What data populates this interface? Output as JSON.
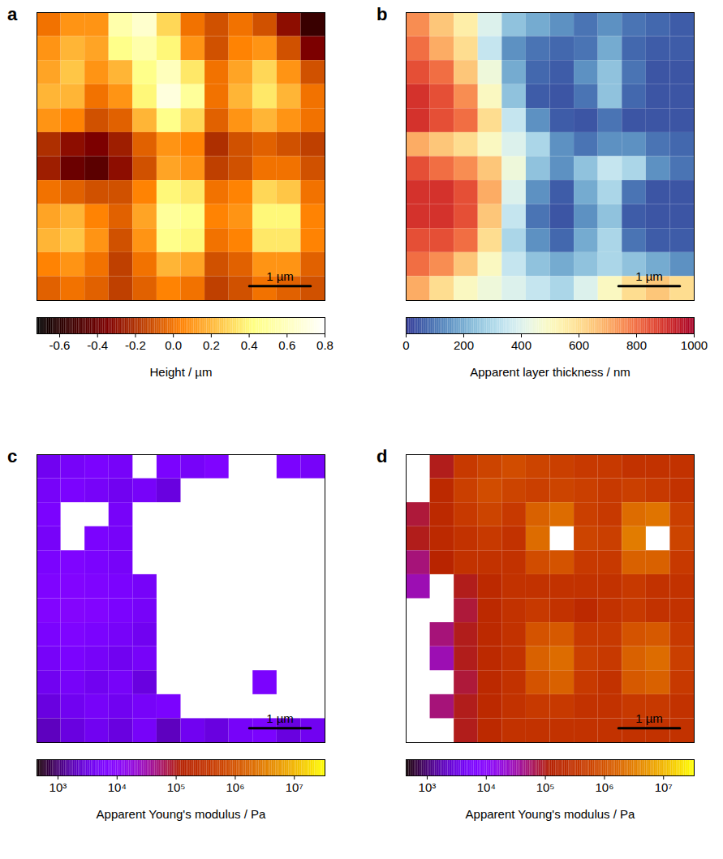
{
  "chart_data": [
    {
      "type": "heatmap",
      "panel": "a",
      "xlim": [
        0,
        4.7
      ],
      "ylim": [
        0,
        4.7
      ],
      "tick_labels": false,
      "color": "afmhot",
      "scale_bar": {
        "length": 1,
        "label": "1 µm"
      },
      "colorbar": {
        "label": "Height / µm",
        "range": [
          -0.72,
          0.8
        ],
        "ticks": [
          -0.6,
          -0.4,
          -0.2,
          {
            "value": 0,
            "label": "0.0"
          },
          0.2,
          0.4,
          0.6,
          0.8
        ]
      },
      "cells": [
        [
          0.0,
          0.1,
          0.1,
          0.55,
          0.65,
          0.3,
          0.0,
          -0.1,
          0.0,
          -0.1,
          -0.3,
          -0.55
        ],
        [
          0.1,
          0.2,
          0.15,
          0.45,
          0.55,
          0.4,
          0.1,
          -0.1,
          0.05,
          0.1,
          -0.1,
          -0.35
        ],
        [
          0.15,
          0.25,
          0.1,
          0.2,
          0.45,
          0.6,
          0.35,
          0.0,
          0.15,
          0.3,
          0.1,
          -0.1
        ],
        [
          0.2,
          0.2,
          0.0,
          0.1,
          0.4,
          0.7,
          0.5,
          0.0,
          0.2,
          0.35,
          0.2,
          0.0
        ],
        [
          0.1,
          0.05,
          -0.1,
          -0.05,
          0.2,
          0.45,
          0.3,
          -0.05,
          0.1,
          0.2,
          0.1,
          0.0
        ],
        [
          -0.2,
          -0.3,
          -0.35,
          -0.25,
          -0.05,
          0.1,
          0.05,
          -0.2,
          -0.1,
          -0.05,
          -0.1,
          -0.15
        ],
        [
          -0.25,
          -0.4,
          -0.45,
          -0.3,
          -0.1,
          0.15,
          0.1,
          -0.15,
          -0.1,
          0.0,
          0.0,
          -0.1
        ],
        [
          0.0,
          -0.05,
          -0.1,
          -0.1,
          0.05,
          0.4,
          0.35,
          0.0,
          0.05,
          0.3,
          0.25,
          0.0
        ],
        [
          0.15,
          0.2,
          0.05,
          -0.05,
          0.15,
          0.5,
          0.45,
          0.05,
          0.1,
          0.4,
          0.4,
          0.05
        ],
        [
          0.2,
          0.25,
          0.1,
          -0.1,
          0.1,
          0.45,
          0.4,
          0.0,
          0.05,
          0.35,
          0.35,
          0.05
        ],
        [
          0.05,
          0.1,
          0.0,
          -0.15,
          0.0,
          0.2,
          0.15,
          -0.1,
          -0.05,
          0.1,
          0.1,
          -0.05
        ],
        [
          -0.05,
          0.0,
          -0.05,
          -0.15,
          -0.05,
          0.05,
          0.0,
          -0.15,
          -0.1,
          0.0,
          -0.05,
          -0.1
        ]
      ]
    },
    {
      "type": "heatmap",
      "panel": "b",
      "xlim": [
        0,
        4.7
      ],
      "ylim": [
        0,
        4.7
      ],
      "tick_labels": false,
      "color": "RdYlBu",
      "scale_bar": {
        "length": 1,
        "label": "1 µm"
      },
      "colorbar": {
        "label": "Apparent layer thickness / nm",
        "range": [
          0,
          1000
        ],
        "ticks": [
          0,
          200,
          400,
          600,
          800,
          1000
        ]
      },
      "cells": [
        [
          750,
          650,
          550,
          400,
          250,
          200,
          150,
          100,
          150,
          100,
          80,
          60
        ],
        [
          800,
          700,
          600,
          350,
          150,
          100,
          80,
          100,
          200,
          80,
          60,
          60
        ],
        [
          850,
          800,
          650,
          450,
          200,
          80,
          60,
          150,
          250,
          100,
          50,
          50
        ],
        [
          900,
          850,
          750,
          500,
          250,
          60,
          50,
          100,
          250,
          80,
          50,
          50
        ],
        [
          900,
          850,
          800,
          600,
          350,
          150,
          60,
          50,
          100,
          50,
          50,
          50
        ],
        [
          700,
          650,
          600,
          500,
          400,
          300,
          150,
          100,
          150,
          150,
          100,
          80
        ],
        [
          850,
          800,
          750,
          650,
          450,
          250,
          150,
          250,
          350,
          300,
          150,
          100
        ],
        [
          900,
          900,
          850,
          700,
          400,
          150,
          60,
          200,
          300,
          100,
          50,
          50
        ],
        [
          900,
          900,
          850,
          650,
          350,
          100,
          50,
          150,
          250,
          60,
          50,
          50
        ],
        [
          850,
          850,
          800,
          600,
          300,
          150,
          80,
          200,
          300,
          100,
          60,
          60
        ],
        [
          800,
          750,
          650,
          500,
          350,
          250,
          200,
          250,
          300,
          250,
          200,
          150
        ],
        [
          700,
          600,
          500,
          450,
          400,
          350,
          300,
          400,
          500,
          600,
          650,
          600
        ]
      ]
    },
    {
      "type": "heatmap",
      "panel": "c",
      "xlim": [
        0,
        4.7
      ],
      "ylim": [
        0,
        4.7
      ],
      "tick_labels": false,
      "color": "gnuplot",
      "log": true,
      "scale_bar": {
        "length": 1,
        "label": "1 µm"
      },
      "colorbar": {
        "label": "Apparent Young's modulus / Pa",
        "range": [
          440,
          33000000
        ],
        "ticks": [
          {
            "value": 1000,
            "label": "10³"
          },
          {
            "value": 10000,
            "label": "10⁴"
          },
          {
            "value": 100000,
            "label": "10⁵"
          },
          {
            "value": 1000000,
            "label": "10⁶"
          },
          {
            "value": 10000000,
            "label": "10⁷"
          }
        ]
      },
      "cells": [
        [
          4000,
          5000,
          6000,
          5000,
          null,
          6000,
          5000,
          7000,
          null,
          null,
          6000,
          5000
        ],
        [
          5000,
          6000,
          5000,
          4000,
          5000,
          3000,
          null,
          null,
          null,
          null,
          null,
          null
        ],
        [
          6000,
          null,
          null,
          5000,
          null,
          null,
          null,
          null,
          null,
          null,
          null,
          null
        ],
        [
          5000,
          null,
          6000,
          5000,
          null,
          null,
          null,
          null,
          null,
          null,
          null,
          null
        ],
        [
          6000,
          7000,
          6000,
          5000,
          null,
          null,
          null,
          null,
          null,
          null,
          null,
          null
        ],
        [
          7000,
          8000,
          7000,
          6000,
          5000,
          null,
          null,
          null,
          null,
          null,
          null,
          null
        ],
        [
          8000,
          9000,
          8000,
          6000,
          5000,
          null,
          null,
          null,
          null,
          null,
          null,
          null
        ],
        [
          6000,
          7000,
          6000,
          5000,
          4000,
          null,
          null,
          null,
          null,
          null,
          null,
          null
        ],
        [
          5000,
          6000,
          5000,
          4000,
          5000,
          null,
          null,
          null,
          null,
          null,
          null,
          null
        ],
        [
          4000,
          5000,
          4000,
          5000,
          3000,
          null,
          null,
          null,
          null,
          6000,
          null,
          null
        ],
        [
          3000,
          4000,
          5000,
          4000,
          5000,
          6000,
          null,
          null,
          null,
          null,
          null,
          null
        ],
        [
          2000,
          3000,
          4000,
          3000,
          5000,
          2000,
          4000,
          3000,
          5000,
          6000,
          3000,
          4000
        ]
      ]
    },
    {
      "type": "heatmap",
      "panel": "d",
      "xlim": [
        0,
        4.7
      ],
      "ylim": [
        0,
        4.7
      ],
      "tick_labels": false,
      "color": "gnuplot",
      "log": true,
      "scale_bar": {
        "length": 1,
        "label": "1 µm"
      },
      "colorbar": {
        "label": "Apparent Young's modulus / Pa",
        "range": [
          440,
          33000000
        ],
        "ticks": [
          {
            "value": 1000,
            "label": "10³"
          },
          {
            "value": 10000,
            "label": "10⁴"
          },
          {
            "value": 100000,
            "label": "10⁵"
          },
          {
            "value": 1000000,
            "label": "10⁶"
          },
          {
            "value": 10000000,
            "label": "10⁷"
          }
        ]
      },
      "cells": [
        [
          null,
          100000,
          400000,
          600000,
          800000,
          600000,
          500000,
          400000,
          400000,
          300000,
          300000,
          300000
        ],
        [
          null,
          200000,
          500000,
          800000,
          600000,
          500000,
          600000,
          500000,
          400000,
          500000,
          400000,
          300000
        ],
        [
          80000,
          200000,
          400000,
          600000,
          400000,
          1500000,
          2000000,
          500000,
          400000,
          2000000,
          2500000,
          500000
        ],
        [
          100000,
          200000,
          300000,
          400000,
          300000,
          2000000,
          null,
          600000,
          500000,
          3000000,
          null,
          600000
        ],
        [
          50000,
          150000,
          300000,
          300000,
          300000,
          800000,
          1000000,
          400000,
          400000,
          1500000,
          1500000,
          400000
        ],
        [
          30000,
          null,
          100000,
          200000,
          300000,
          300000,
          300000,
          300000,
          300000,
          400000,
          300000,
          300000
        ],
        [
          null,
          null,
          80000,
          200000,
          300000,
          400000,
          300000,
          200000,
          300000,
          400000,
          300000,
          300000
        ],
        [
          null,
          50000,
          100000,
          200000,
          300000,
          1000000,
          1200000,
          400000,
          400000,
          1000000,
          1200000,
          400000
        ],
        [
          null,
          30000,
          100000,
          200000,
          300000,
          1500000,
          2000000,
          500000,
          400000,
          1500000,
          2000000,
          500000
        ],
        [
          null,
          null,
          80000,
          200000,
          300000,
          1000000,
          1500000,
          400000,
          300000,
          1200000,
          1500000,
          400000
        ],
        [
          null,
          50000,
          100000,
          200000,
          300000,
          400000,
          400000,
          300000,
          300000,
          400000,
          400000,
          300000
        ],
        [
          null,
          null,
          100000,
          200000,
          300000,
          300000,
          300000,
          300000,
          300000,
          300000,
          300000,
          300000
        ]
      ]
    }
  ]
}
